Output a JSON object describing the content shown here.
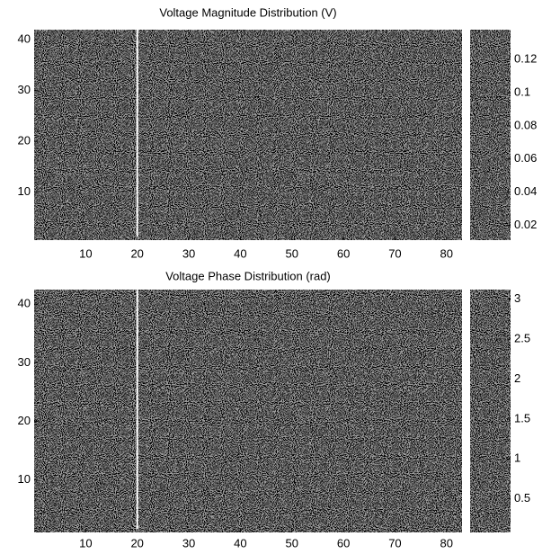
{
  "chart_data": [
    {
      "type": "heatmap",
      "title": "Voltage Magnitude Distribution (V)",
      "xlim": [
        0,
        83
      ],
      "ylim": [
        0.5,
        42
      ],
      "xticks": [
        10,
        20,
        30,
        40,
        50,
        60,
        70,
        80
      ],
      "yticks": [
        10,
        20,
        30,
        40
      ],
      "vline": 20,
      "colorbar": {
        "lim": [
          0.011,
          0.138
        ],
        "ticks": [
          0.02,
          0.04,
          0.06,
          0.08,
          0.1,
          0.12
        ]
      }
    },
    {
      "type": "heatmap",
      "title": "Voltage Phase Distribution (rad)",
      "xlim": [
        0,
        83
      ],
      "ylim": [
        1,
        42.5
      ],
      "xticks": [
        10,
        20,
        30,
        40,
        50,
        60,
        70,
        80
      ],
      "yticks": [
        10,
        20,
        30,
        40
      ],
      "vline": 20,
      "colorbar": {
        "lim": [
          0.08,
          3.12
        ],
        "ticks": [
          0.5,
          1,
          1.5,
          2,
          2.5,
          3
        ]
      }
    }
  ]
}
